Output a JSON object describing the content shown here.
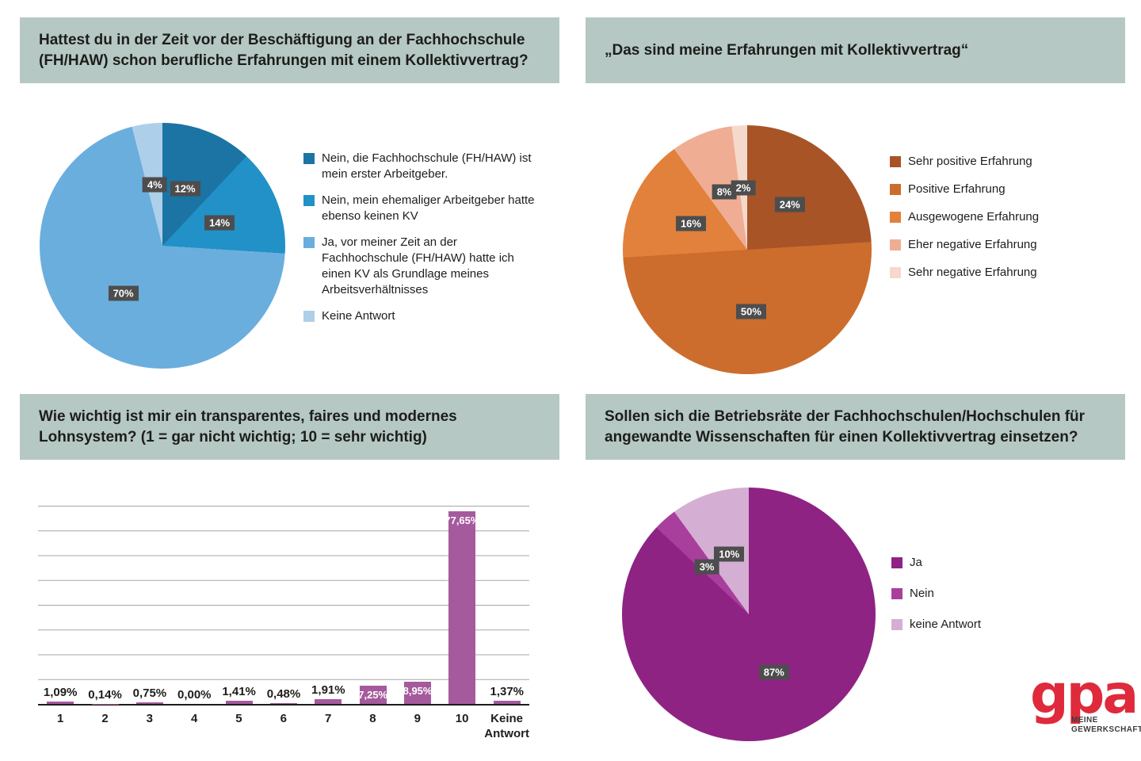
{
  "styles": {
    "title_bg": "#b5c8c3",
    "title_color": "#1d1d1b",
    "label_box_bg": "#4d4d4d",
    "label_box_color": "#ffffff",
    "grid_color": "#a6a6a6",
    "axis_color": "#1d1d1b"
  },
  "brand": {
    "logo_text": "gpa",
    "logo_sub1": "MEINE",
    "logo_sub2": "GEWERKSCHAFT",
    "logo_color": "#df2a3c"
  },
  "chart_data": [
    {
      "id": "pie-vorherige-kv-erfahrung",
      "type": "pie",
      "title": "Hattest du in der Zeit vor der Beschäftigung an der Fachhochschule (FH/HAW) schon berufliche Erfahrungen mit einem Kollektivvertrag?",
      "start_angle_deg": 0,
      "direction": "clockwise",
      "legend_position": "right",
      "slices": [
        {
          "label": "Nein, die Fachhochschule (FH/HAW) ist mein erster Arbeitgeber.",
          "value": 12,
          "display": "12%",
          "color": "#1b74a4"
        },
        {
          "label": "Nein, mein ehemaliger Arbeitgeber hatte ebenso keinen KV",
          "value": 14,
          "display": "14%",
          "color": "#2191c7"
        },
        {
          "label": "Ja, vor meiner Zeit an der Fachhochschule (FH/HAW) hatte ich einen KV als Grundlage meines Arbeitsverhältnisses",
          "value": 70,
          "display": "70%",
          "color": "#6aaedd"
        },
        {
          "label": "Keine Antwort",
          "value": 4,
          "display": "4%",
          "color": "#aecfea"
        }
      ]
    },
    {
      "id": "pie-kv-erfahrungen",
      "type": "pie",
      "title": "„Das sind meine Erfahrungen mit Kollektivvertrag“",
      "start_angle_deg": 0,
      "direction": "clockwise",
      "legend_position": "right",
      "slices": [
        {
          "label": "Sehr positive Erfahrung",
          "value": 24,
          "display": "24%",
          "color": "#a85427"
        },
        {
          "label": "Positive Erfahrung",
          "value": 50,
          "display": "50%",
          "color": "#cc6d2d"
        },
        {
          "label": "Ausgewogene Erfahrung",
          "value": 16,
          "display": "16%",
          "color": "#e2813c"
        },
        {
          "label": "Eher negative Erfahrung",
          "value": 8,
          "display": "8%",
          "color": "#efae93"
        },
        {
          "label": "Sehr negative Erfahrung",
          "value": 2,
          "display": "2%",
          "color": "#f6d9cd"
        }
      ]
    },
    {
      "id": "bar-lohnsystem-wichtigkeit",
      "type": "bar",
      "title": "Wie wichtig ist mir ein transparentes, faires und modernes Lohnsystem? (1 = gar nicht wichtig; 10 = sehr wichtig)",
      "categories": [
        "1",
        "2",
        "3",
        "4",
        "5",
        "6",
        "7",
        "8",
        "9",
        "10",
        "Keine Antwort"
      ],
      "values": [
        1.09,
        0.14,
        0.75,
        0.0,
        1.41,
        0.48,
        1.91,
        7.25,
        8.95,
        77.65,
        1.37
      ],
      "value_labels": [
        "1,09%",
        "0,14%",
        "0,75%",
        "0,00%",
        "1,41%",
        "0,48%",
        "1,91%",
        "7,25%",
        "8,95%",
        "77,65%",
        "1,37%"
      ],
      "bar_color": "#a55a9d",
      "xlabel": "",
      "ylabel": "",
      "ylim": [
        0,
        80
      ],
      "gridline_step": 10,
      "grid": true,
      "y_tick_labels_shown": false
    },
    {
      "id": "pie-betriebsraete-kv",
      "type": "pie",
      "title": "Sollen sich die Betriebsräte der Fachhochschulen/Hochschulen für angewandte Wissenschaften für einen Kollektivvertrag einsetzen?",
      "start_angle_deg": 0,
      "direction": "clockwise",
      "legend_position": "right",
      "slices": [
        {
          "label": "Ja",
          "value": 87,
          "display": "87%",
          "color": "#8e2384"
        },
        {
          "label": "Nein",
          "value": 3,
          "display": "3%",
          "color": "#a93f9c"
        },
        {
          "label": "keine Antwort",
          "value": 10,
          "display": "10%",
          "color": "#d4afd3"
        }
      ]
    }
  ]
}
